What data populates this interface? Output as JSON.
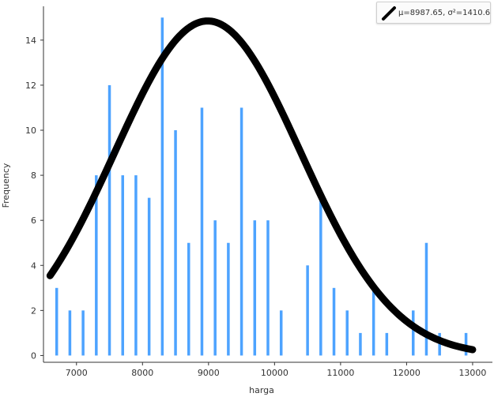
{
  "chart_data": {
    "type": "bar",
    "xlabel": "harga",
    "ylabel": "Frequency",
    "xlim": [
      6500,
      13300
    ],
    "ylim": [
      -0.3,
      15.5
    ],
    "x_ticks": [
      7000,
      8000,
      9000,
      10000,
      11000,
      12000,
      13000
    ],
    "y_ticks": [
      0,
      2,
      4,
      6,
      8,
      10,
      12,
      14
    ],
    "bar_color": "#4da3ff",
    "curve_color": "#000000",
    "bars": [
      {
        "x": 6700,
        "y": 3
      },
      {
        "x": 6900,
        "y": 2
      },
      {
        "x": 7100,
        "y": 2
      },
      {
        "x": 7300,
        "y": 8
      },
      {
        "x": 7500,
        "y": 12
      },
      {
        "x": 7700,
        "y": 8
      },
      {
        "x": 7900,
        "y": 8
      },
      {
        "x": 8100,
        "y": 7
      },
      {
        "x": 8300,
        "y": 15
      },
      {
        "x": 8500,
        "y": 10
      },
      {
        "x": 8700,
        "y": 5
      },
      {
        "x": 8900,
        "y": 11
      },
      {
        "x": 9100,
        "y": 6
      },
      {
        "x": 9300,
        "y": 5
      },
      {
        "x": 9500,
        "y": 11
      },
      {
        "x": 9700,
        "y": 6
      },
      {
        "x": 9900,
        "y": 6
      },
      {
        "x": 10100,
        "y": 2
      },
      {
        "x": 10500,
        "y": 4
      },
      {
        "x": 10700,
        "y": 7
      },
      {
        "x": 10900,
        "y": 3
      },
      {
        "x": 11100,
        "y": 2
      },
      {
        "x": 11300,
        "y": 1
      },
      {
        "x": 11500,
        "y": 3
      },
      {
        "x": 11700,
        "y": 1
      },
      {
        "x": 12100,
        "y": 2
      },
      {
        "x": 12300,
        "y": 5
      },
      {
        "x": 12500,
        "y": 1
      },
      {
        "x": 12900,
        "y": 1
      }
    ],
    "fit": {
      "type": "normal",
      "mu": 8987.65,
      "sigma": 1410.6,
      "peak": 14.85,
      "x_range": [
        6600,
        13000
      ]
    },
    "legend": {
      "label": "μ=8987.65, σ²=1410.6",
      "position": "top-right"
    }
  }
}
